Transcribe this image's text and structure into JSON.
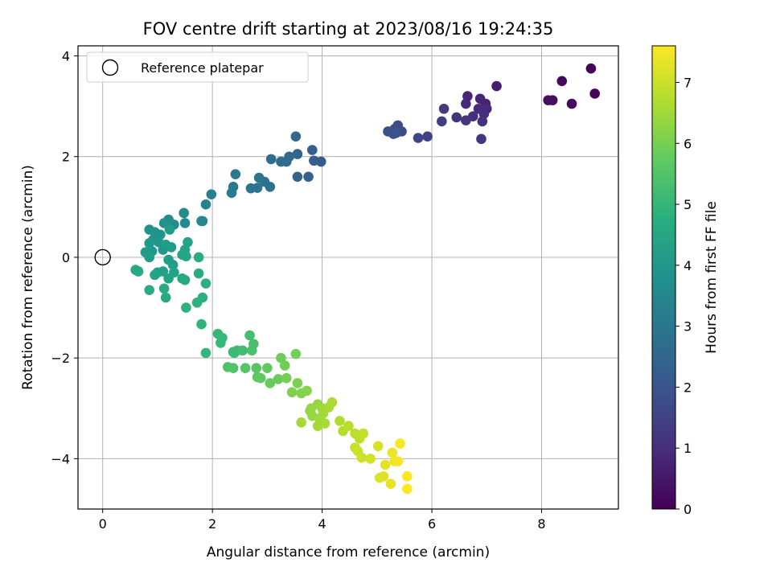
{
  "chart_data": {
    "type": "scatter",
    "title": "FOV centre drift starting at 2023/08/16 19:24:35",
    "xlabel": "Angular distance from reference (arcmin)",
    "ylabel": "Rotation from reference (arcmin)",
    "xlim": [
      -0.45,
      9.4
    ],
    "ylim": [
      -5.0,
      4.2
    ],
    "xticks": [
      0,
      2,
      4,
      6,
      8
    ],
    "yticks": [
      -4,
      -2,
      0,
      2,
      4
    ],
    "xtick_labels": [
      "0",
      "2",
      "4",
      "6",
      "8"
    ],
    "ytick_labels": [
      "−4",
      "−2",
      "0",
      "2",
      "4"
    ],
    "grid": true,
    "legend": {
      "position": "top-left",
      "entries": [
        "Reference platepar"
      ]
    },
    "reference": {
      "x": 0,
      "y": 0
    },
    "colorbar": {
      "label": "Hours from first FF file",
      "min": 0,
      "max": 7.6,
      "ticks": [
        0,
        1,
        2,
        3,
        4,
        5,
        6,
        7
      ],
      "tick_labels": [
        "0",
        "1",
        "2",
        "3",
        "4",
        "5",
        "6",
        "7"
      ],
      "colormap": "viridis"
    },
    "points": [
      {
        "x": 8.9,
        "y": 3.75,
        "t": 0.05
      },
      {
        "x": 8.97,
        "y": 3.25,
        "t": 0.1
      },
      {
        "x": 8.55,
        "y": 3.05,
        "t": 0.15
      },
      {
        "x": 8.37,
        "y": 3.5,
        "t": 0.2
      },
      {
        "x": 8.2,
        "y": 3.12,
        "t": 0.25
      },
      {
        "x": 8.12,
        "y": 3.12,
        "t": 0.3
      },
      {
        "x": 7.18,
        "y": 3.4,
        "t": 0.6
      },
      {
        "x": 6.98,
        "y": 3.05,
        "t": 0.7
      },
      {
        "x": 6.88,
        "y": 3.15,
        "t": 0.75
      },
      {
        "x": 6.65,
        "y": 3.2,
        "t": 0.8
      },
      {
        "x": 6.62,
        "y": 3.05,
        "t": 0.85
      },
      {
        "x": 7.0,
        "y": 2.95,
        "t": 0.9
      },
      {
        "x": 6.85,
        "y": 2.95,
        "t": 0.95
      },
      {
        "x": 6.95,
        "y": 2.85,
        "t": 1.0
      },
      {
        "x": 6.75,
        "y": 2.8,
        "t": 1.05
      },
      {
        "x": 6.92,
        "y": 2.7,
        "t": 1.1
      },
      {
        "x": 6.45,
        "y": 2.78,
        "t": 1.15
      },
      {
        "x": 6.62,
        "y": 2.72,
        "t": 1.2
      },
      {
        "x": 6.9,
        "y": 2.35,
        "t": 1.25
      },
      {
        "x": 6.22,
        "y": 2.95,
        "t": 1.3
      },
      {
        "x": 6.18,
        "y": 2.7,
        "t": 1.35
      },
      {
        "x": 5.92,
        "y": 2.4,
        "t": 1.5
      },
      {
        "x": 5.75,
        "y": 2.37,
        "t": 1.6
      },
      {
        "x": 5.45,
        "y": 2.5,
        "t": 1.7
      },
      {
        "x": 5.38,
        "y": 2.62,
        "t": 1.75
      },
      {
        "x": 5.32,
        "y": 2.55,
        "t": 1.8
      },
      {
        "x": 5.2,
        "y": 2.5,
        "t": 1.85
      },
      {
        "x": 5.35,
        "y": 2.47,
        "t": 1.9
      },
      {
        "x": 5.3,
        "y": 2.45,
        "t": 1.95
      },
      {
        "x": 3.98,
        "y": 1.9,
        "t": 2.2
      },
      {
        "x": 3.85,
        "y": 1.92,
        "t": 2.25
      },
      {
        "x": 3.82,
        "y": 2.13,
        "t": 2.3
      },
      {
        "x": 3.75,
        "y": 1.6,
        "t": 2.35
      },
      {
        "x": 3.55,
        "y": 1.6,
        "t": 2.4
      },
      {
        "x": 3.55,
        "y": 2.05,
        "t": 2.45
      },
      {
        "x": 3.52,
        "y": 2.4,
        "t": 2.5
      },
      {
        "x": 3.4,
        "y": 2.0,
        "t": 2.55
      },
      {
        "x": 3.35,
        "y": 1.9,
        "t": 2.6
      },
      {
        "x": 3.25,
        "y": 1.9,
        "t": 2.65
      },
      {
        "x": 3.07,
        "y": 1.95,
        "t": 2.7
      },
      {
        "x": 3.05,
        "y": 1.4,
        "t": 2.8
      },
      {
        "x": 2.95,
        "y": 1.5,
        "t": 2.85
      },
      {
        "x": 2.85,
        "y": 1.58,
        "t": 2.9
      },
      {
        "x": 2.82,
        "y": 1.38,
        "t": 2.95
      },
      {
        "x": 2.7,
        "y": 1.37,
        "t": 3.0
      },
      {
        "x": 2.42,
        "y": 1.65,
        "t": 3.05
      },
      {
        "x": 2.38,
        "y": 1.4,
        "t": 3.1
      },
      {
        "x": 2.35,
        "y": 1.28,
        "t": 3.15
      },
      {
        "x": 1.98,
        "y": 1.25,
        "t": 3.3
      },
      {
        "x": 1.88,
        "y": 1.05,
        "t": 3.4
      },
      {
        "x": 1.8,
        "y": 0.72,
        "t": 3.5
      },
      {
        "x": 1.82,
        "y": 0.72,
        "t": 3.55
      },
      {
        "x": 1.5,
        "y": 0.68,
        "t": 3.6
      },
      {
        "x": 1.48,
        "y": 0.88,
        "t": 3.65
      },
      {
        "x": 1.3,
        "y": 0.65,
        "t": 3.7
      },
      {
        "x": 1.2,
        "y": 0.75,
        "t": 3.75
      },
      {
        "x": 1.12,
        "y": 0.68,
        "t": 3.8
      },
      {
        "x": 1.05,
        "y": 0.45,
        "t": 3.85
      },
      {
        "x": 0.95,
        "y": 0.5,
        "t": 3.9
      },
      {
        "x": 0.85,
        "y": 0.55,
        "t": 3.9
      },
      {
        "x": 0.92,
        "y": 0.35,
        "t": 3.95
      },
      {
        "x": 1.02,
        "y": 0.3,
        "t": 4.0
      },
      {
        "x": 1.1,
        "y": 0.15,
        "t": 4.0
      },
      {
        "x": 0.85,
        "y": 0.28,
        "t": 4.05
      },
      {
        "x": 0.9,
        "y": 0.12,
        "t": 4.1
      },
      {
        "x": 0.78,
        "y": 0.1,
        "t": 4.1
      },
      {
        "x": 0.85,
        "y": 0.0,
        "t": 4.15
      },
      {
        "x": 1.15,
        "y": 0.25,
        "t": 4.15
      },
      {
        "x": 1.22,
        "y": 0.55,
        "t": 4.2
      },
      {
        "x": 1.25,
        "y": 0.2,
        "t": 4.2
      },
      {
        "x": 1.2,
        "y": -0.05,
        "t": 4.25
      },
      {
        "x": 1.28,
        "y": -0.15,
        "t": 4.25
      },
      {
        "x": 1.1,
        "y": -0.28,
        "t": 4.3
      },
      {
        "x": 1.0,
        "y": -0.3,
        "t": 4.3
      },
      {
        "x": 1.3,
        "y": -0.3,
        "t": 4.35
      },
      {
        "x": 1.2,
        "y": -0.42,
        "t": 4.35
      },
      {
        "x": 0.95,
        "y": -0.35,
        "t": 4.4
      },
      {
        "x": 1.55,
        "y": 0.3,
        "t": 4.4
      },
      {
        "x": 1.5,
        "y": 0.15,
        "t": 4.45
      },
      {
        "x": 1.45,
        "y": 0.05,
        "t": 4.45
      },
      {
        "x": 1.52,
        "y": 0.02,
        "t": 4.5
      },
      {
        "x": 1.45,
        "y": -0.42,
        "t": 4.5
      },
      {
        "x": 1.5,
        "y": -0.45,
        "t": 4.55
      },
      {
        "x": 0.6,
        "y": -0.25,
        "t": 4.55
      },
      {
        "x": 0.65,
        "y": -0.28,
        "t": 4.55
      },
      {
        "x": 1.12,
        "y": -0.62,
        "t": 4.6
      },
      {
        "x": 1.15,
        "y": -0.8,
        "t": 4.6
      },
      {
        "x": 0.85,
        "y": -0.65,
        "t": 4.65
      },
      {
        "x": 1.75,
        "y": 0.0,
        "t": 4.65
      },
      {
        "x": 1.75,
        "y": -0.32,
        "t": 4.7
      },
      {
        "x": 1.88,
        "y": -0.52,
        "t": 4.75
      },
      {
        "x": 1.82,
        "y": -0.8,
        "t": 4.8
      },
      {
        "x": 1.72,
        "y": -0.9,
        "t": 4.8
      },
      {
        "x": 1.52,
        "y": -1.0,
        "t": 4.85
      },
      {
        "x": 1.8,
        "y": -1.33,
        "t": 4.9
      },
      {
        "x": 1.88,
        "y": -1.9,
        "t": 5.0
      },
      {
        "x": 2.1,
        "y": -1.52,
        "t": 5.05
      },
      {
        "x": 2.18,
        "y": -1.6,
        "t": 5.1
      },
      {
        "x": 2.15,
        "y": -1.7,
        "t": 5.1
      },
      {
        "x": 2.38,
        "y": -1.88,
        "t": 5.15
      },
      {
        "x": 2.45,
        "y": -1.85,
        "t": 5.2
      },
      {
        "x": 2.4,
        "y": -1.9,
        "t": 5.2
      },
      {
        "x": 2.55,
        "y": -1.85,
        "t": 5.25
      },
      {
        "x": 2.68,
        "y": -1.55,
        "t": 5.3
      },
      {
        "x": 2.75,
        "y": -1.72,
        "t": 5.35
      },
      {
        "x": 2.72,
        "y": -1.85,
        "t": 5.4
      },
      {
        "x": 2.28,
        "y": -2.18,
        "t": 5.45
      },
      {
        "x": 2.38,
        "y": -2.2,
        "t": 5.5
      },
      {
        "x": 2.6,
        "y": -2.2,
        "t": 5.55
      },
      {
        "x": 2.8,
        "y": -2.2,
        "t": 5.6
      },
      {
        "x": 2.82,
        "y": -2.38,
        "t": 5.65
      },
      {
        "x": 2.88,
        "y": -2.4,
        "t": 5.7
      },
      {
        "x": 3.0,
        "y": -2.2,
        "t": 5.75
      },
      {
        "x": 3.05,
        "y": -2.5,
        "t": 5.8
      },
      {
        "x": 3.2,
        "y": -2.42,
        "t": 5.85
      },
      {
        "x": 3.25,
        "y": -2.0,
        "t": 5.9
      },
      {
        "x": 3.32,
        "y": -2.15,
        "t": 5.95
      },
      {
        "x": 3.35,
        "y": -2.4,
        "t": 6.0
      },
      {
        "x": 3.52,
        "y": -1.92,
        "t": 6.0
      },
      {
        "x": 3.55,
        "y": -2.5,
        "t": 6.05
      },
      {
        "x": 3.45,
        "y": -2.68,
        "t": 6.1
      },
      {
        "x": 3.62,
        "y": -2.7,
        "t": 6.15
      },
      {
        "x": 3.72,
        "y": -2.65,
        "t": 6.2
      },
      {
        "x": 3.78,
        "y": -3.05,
        "t": 6.3
      },
      {
        "x": 3.8,
        "y": -3.0,
        "t": 6.35
      },
      {
        "x": 3.82,
        "y": -3.15,
        "t": 6.4
      },
      {
        "x": 3.92,
        "y": -2.92,
        "t": 6.4
      },
      {
        "x": 4.0,
        "y": -3.0,
        "t": 6.45
      },
      {
        "x": 3.95,
        "y": -3.2,
        "t": 6.5
      },
      {
        "x": 4.02,
        "y": -3.1,
        "t": 6.5
      },
      {
        "x": 3.92,
        "y": -3.35,
        "t": 6.55
      },
      {
        "x": 3.62,
        "y": -3.28,
        "t": 6.55
      },
      {
        "x": 4.05,
        "y": -3.3,
        "t": 6.6
      },
      {
        "x": 4.12,
        "y": -2.98,
        "t": 6.6
      },
      {
        "x": 4.18,
        "y": -2.88,
        "t": 6.65
      },
      {
        "x": 4.32,
        "y": -3.25,
        "t": 6.7
      },
      {
        "x": 4.38,
        "y": -3.45,
        "t": 6.75
      },
      {
        "x": 4.48,
        "y": -3.35,
        "t": 6.8
      },
      {
        "x": 4.6,
        "y": -3.5,
        "t": 6.85
      },
      {
        "x": 4.68,
        "y": -3.6,
        "t": 6.85
      },
      {
        "x": 4.75,
        "y": -3.5,
        "t": 6.9
      },
      {
        "x": 4.6,
        "y": -3.78,
        "t": 6.95
      },
      {
        "x": 4.65,
        "y": -3.85,
        "t": 7.0
      },
      {
        "x": 4.72,
        "y": -3.98,
        "t": 7.05
      },
      {
        "x": 4.88,
        "y": -4.0,
        "t": 7.1
      },
      {
        "x": 5.02,
        "y": -3.75,
        "t": 7.15
      },
      {
        "x": 5.05,
        "y": -4.38,
        "t": 7.2
      },
      {
        "x": 5.12,
        "y": -4.35,
        "t": 7.25
      },
      {
        "x": 5.15,
        "y": -4.12,
        "t": 7.3
      },
      {
        "x": 5.25,
        "y": -4.5,
        "t": 7.35
      },
      {
        "x": 5.28,
        "y": -3.88,
        "t": 7.4
      },
      {
        "x": 5.32,
        "y": -4.05,
        "t": 7.45
      },
      {
        "x": 5.38,
        "y": -4.05,
        "t": 7.5
      },
      {
        "x": 5.42,
        "y": -3.7,
        "t": 7.55
      },
      {
        "x": 5.55,
        "y": -4.35,
        "t": 7.55
      },
      {
        "x": 5.55,
        "y": -4.6,
        "t": 7.6
      }
    ]
  }
}
